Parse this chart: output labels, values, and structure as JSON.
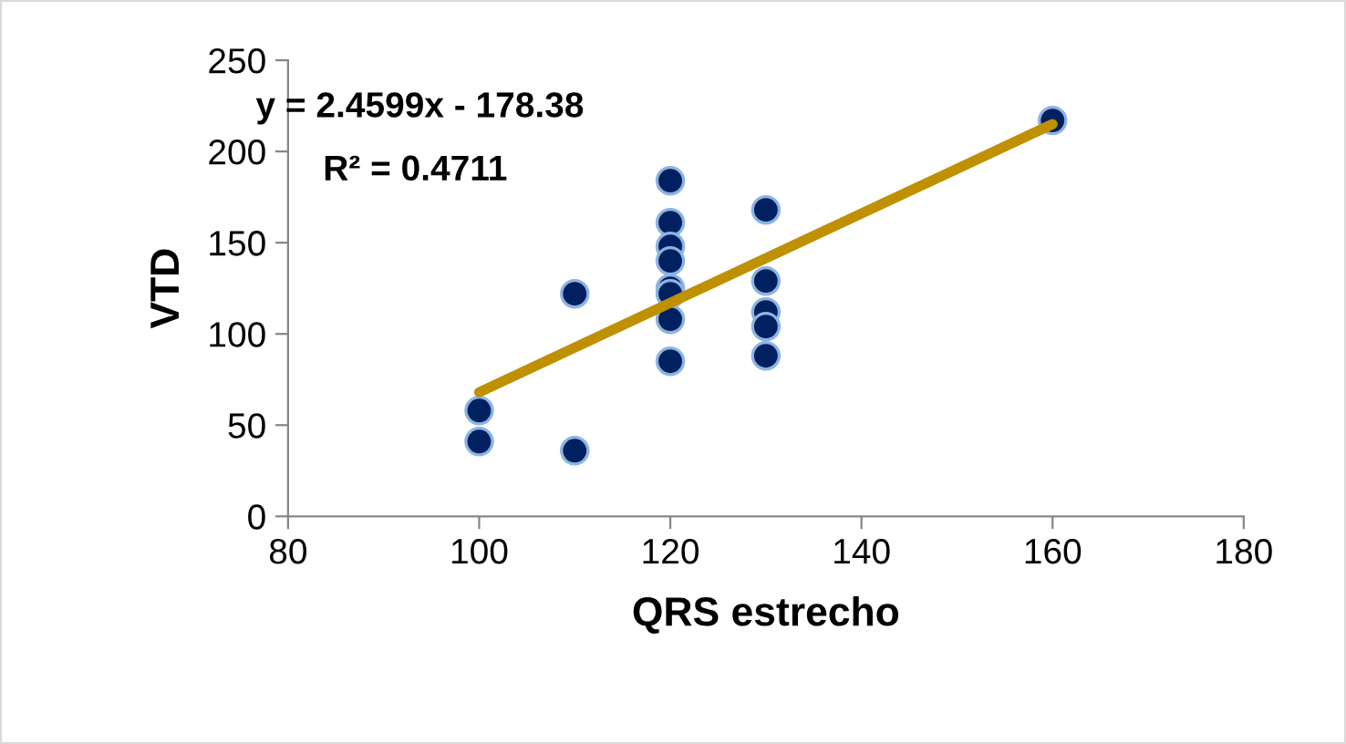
{
  "chart_data": {
    "type": "scatter",
    "xlabel": "QRS estrecho",
    "ylabel": "VTD",
    "annotations": [
      "y = 2.4599x - 178.38",
      "R² = 0.4711"
    ],
    "xlim": [
      80,
      180
    ],
    "xticks": [
      80,
      100,
      120,
      140,
      160,
      180
    ],
    "ylim": [
      0,
      250
    ],
    "yticks": [
      0,
      50,
      100,
      150,
      200,
      250
    ],
    "grid": false,
    "series": [
      {
        "marker": "circle",
        "color": "#002060",
        "x": [
          100,
          100,
          110,
          110,
          120,
          120,
          120,
          120,
          120,
          120,
          120,
          120,
          130,
          130,
          130,
          130,
          130,
          160
        ],
        "values": [
          58,
          41,
          122,
          36,
          184,
          161,
          148,
          140,
          125,
          122,
          108,
          85,
          168,
          129,
          112,
          104,
          88,
          217
        ]
      },
      {
        "type": "line",
        "color": "#bf9000",
        "x": [
          100,
          160
        ],
        "values": [
          68,
          215
        ],
        "line_style": "solid"
      }
    ]
  }
}
